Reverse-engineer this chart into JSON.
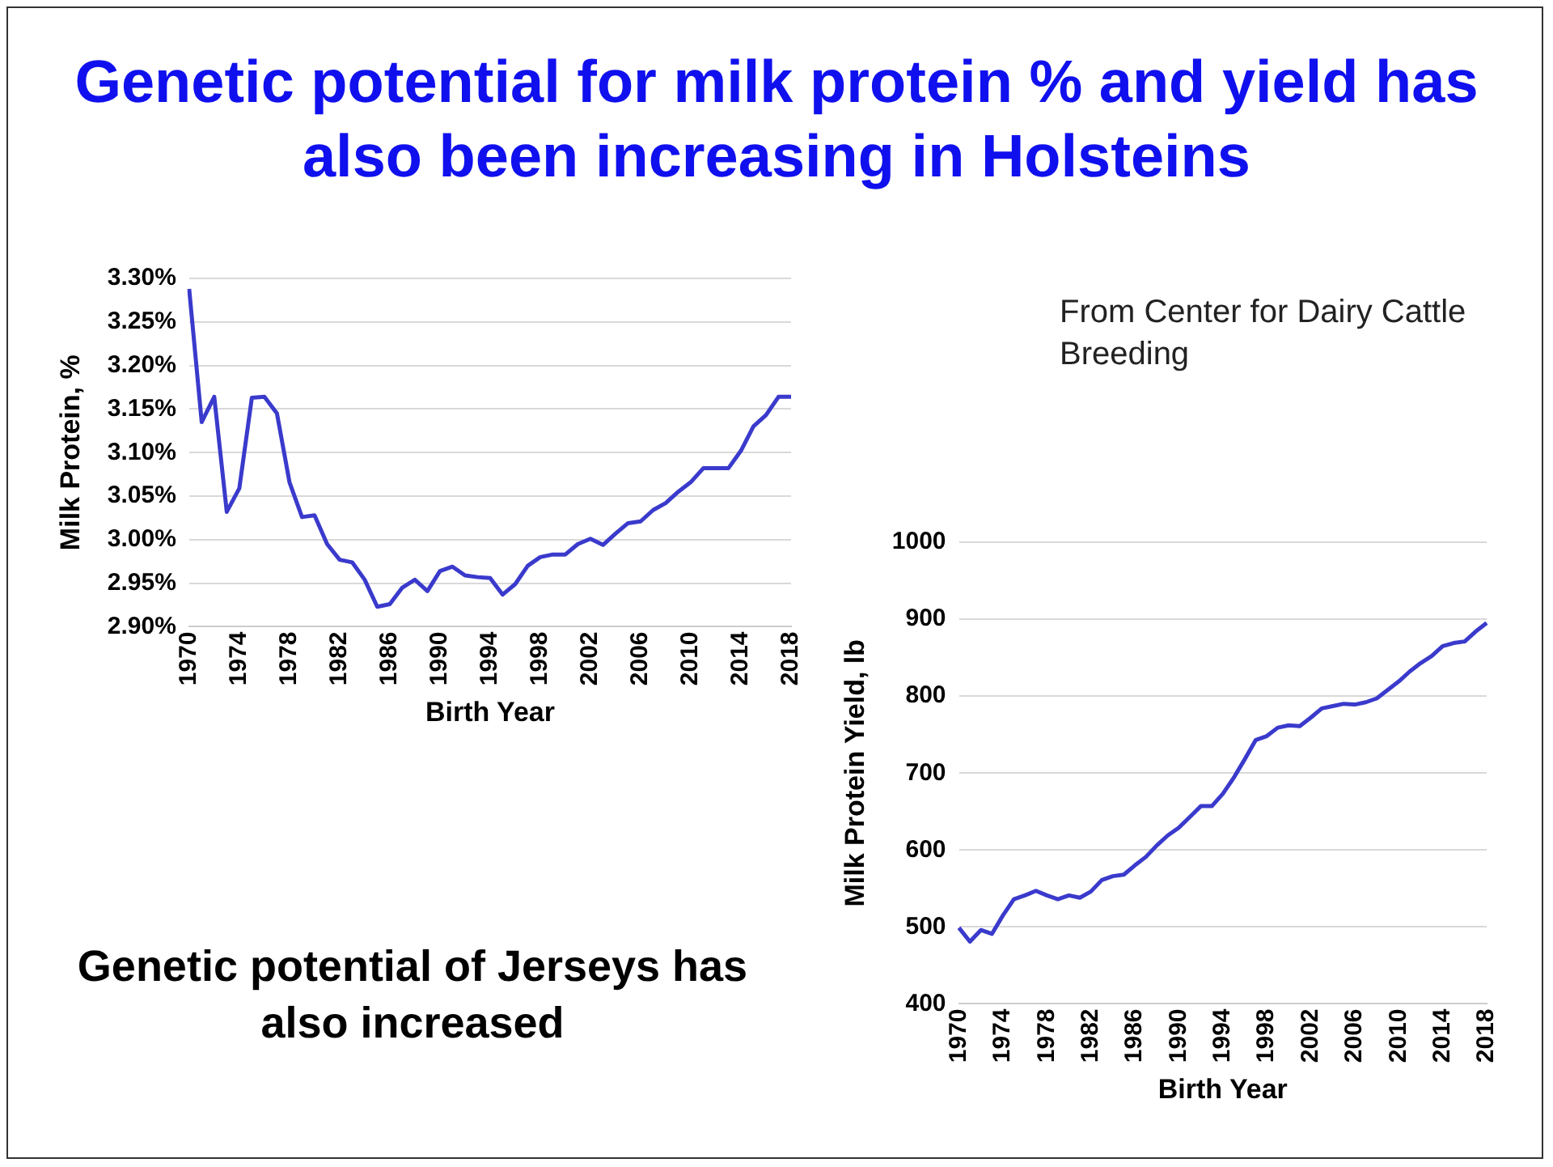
{
  "chart_data": [
    {
      "type": "line",
      "title": "Genetic potential for milk protein % and yield has also been increasing in Holsteins",
      "xlabel": "Birth Year",
      "ylabel": "Milk Protein, %",
      "categories": [
        "1970",
        null,
        null,
        null,
        "1974",
        null,
        null,
        null,
        "1978",
        null,
        null,
        null,
        "1982",
        null,
        null,
        null,
        "1986",
        null,
        null,
        null,
        "1990",
        null,
        null,
        null,
        "1994",
        null,
        null,
        null,
        "1998",
        null,
        null,
        null,
        "2002",
        null,
        null,
        null,
        "2006",
        null,
        null,
        null,
        "2010",
        null,
        null,
        null,
        "2014",
        null,
        null,
        null,
        "2018"
      ],
      "series": [
        {
          "color": "#3a3acc",
          "values": [
            3.288,
            3.135,
            3.164,
            3.032,
            3.059,
            3.163,
            3.164,
            3.145,
            3.066,
            3.026,
            3.028,
            2.995,
            2.977,
            2.974,
            2.954,
            2.923,
            2.926,
            2.945,
            2.954,
            2.941,
            2.964,
            2.969,
            2.959,
            2.957,
            2.956,
            2.937,
            2.949,
            2.97,
            2.98,
            2.983,
            2.983,
            2.995,
            3.001,
            2.994,
            3.007,
            3.019,
            3.021,
            3.034,
            3.042,
            3.055,
            3.066,
            3.082,
            3.082,
            3.082,
            3.102,
            3.13,
            3.143,
            3.164,
            3.164
          ]
        }
      ],
      "ylim": [
        2.9,
        3.3
      ],
      "yticks": [
        {
          "value": 2.9,
          "label": "2.90%"
        },
        {
          "value": 2.95,
          "label": "2.95%"
        },
        {
          "value": 3.0,
          "label": "3.00%"
        },
        {
          "value": 3.05,
          "label": "3.05%"
        },
        {
          "value": 3.1,
          "label": "3.10%"
        },
        {
          "value": 3.15,
          "label": "3.15%"
        },
        {
          "value": 3.2,
          "label": "3.20%"
        },
        {
          "value": 3.25,
          "label": "3.25%"
        },
        {
          "value": 3.3,
          "label": "3.30%"
        }
      ],
      "grid": "y",
      "legend": false,
      "marker": "none",
      "annotations": [
        "Genetic potential of Jerseys has also increased"
      ]
    },
    {
      "type": "line",
      "xlabel": "Birth Year",
      "ylabel": "Milk Protein Yield, lb",
      "categories": [
        "1970",
        null,
        null,
        null,
        "1974",
        null,
        null,
        null,
        "1978",
        null,
        null,
        null,
        "1982",
        null,
        null,
        null,
        "1986",
        null,
        null,
        null,
        "1990",
        null,
        null,
        null,
        "1994",
        null,
        null,
        null,
        "1998",
        null,
        null,
        null,
        "2002",
        null,
        null,
        null,
        "2006",
        null,
        null,
        null,
        "2010",
        null,
        null,
        null,
        "2014",
        null,
        null,
        null,
        "2018"
      ],
      "series": [
        {
          "color": "#3a3acc",
          "values": [
            499,
            481,
            496,
            491,
            515,
            536,
            541,
            547,
            541,
            536,
            541,
            538,
            546,
            561,
            566,
            568,
            580,
            591,
            606,
            619,
            629,
            643,
            657,
            657,
            673,
            694,
            718,
            743,
            748,
            759,
            762,
            761,
            772,
            784,
            787,
            790,
            789,
            792,
            797,
            808,
            819,
            832,
            843,
            852,
            865,
            869,
            871,
            884,
            895
          ]
        }
      ],
      "ylim": [
        400,
        1000
      ],
      "yticks": [
        400,
        500,
        600,
        700,
        800,
        900,
        1000
      ],
      "grid": "y",
      "legend": false,
      "marker": "none",
      "annotations": [
        "From Center for Dairy Cattle Breeding"
      ]
    }
  ]
}
